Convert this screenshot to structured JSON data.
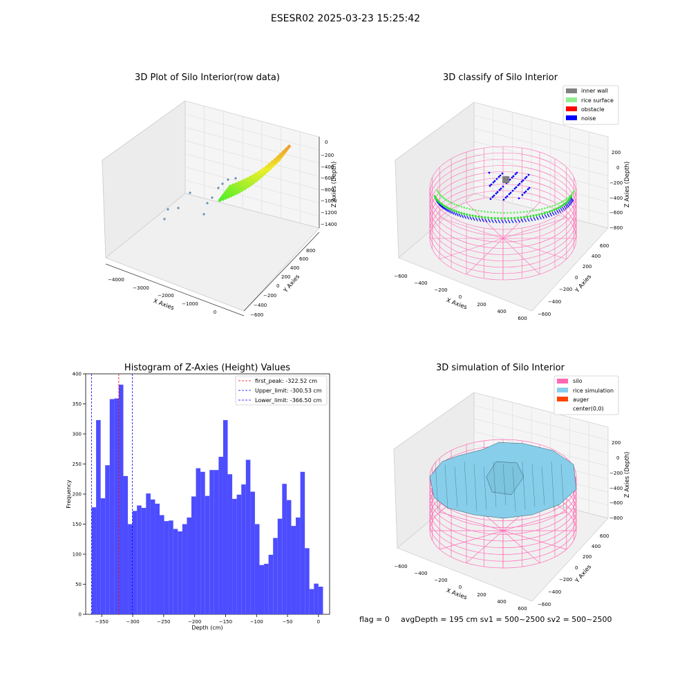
{
  "suptitle": "ESESR02 2025-03-23 15:25:42",
  "footer": {
    "flag": "flag = 0",
    "avg": "avgDepth = 195 cm  sv1 = 500~2500  sv2 = 500~2500"
  },
  "colors": {
    "inner_wall": "#808080",
    "rice_surface": "#90ee90",
    "obstacle": "#ff0000",
    "noise": "#0000ff",
    "silo": "#ff69b4",
    "rice_simulation": "#87ceeb",
    "auger": "#ff4500",
    "hist_bar": "#4d4dff",
    "first_peak_line": "#ff0000",
    "limit_line": "#0000ff"
  },
  "chart_data": [
    {
      "type": "scatter",
      "title": "3D Plot of Silo Interior(row data)",
      "xlabel": "X Axies",
      "ylabel": "Y Axies",
      "zlabel": "Z Axies (Depth)",
      "x_ticks": [
        "−4000",
        "−3000",
        "−2000",
        "−1000",
        "0"
      ],
      "y_ticks": [
        "−600",
        "−400",
        "−200",
        "0",
        "200",
        "400",
        "600",
        "800"
      ],
      "z_ticks": [
        "0",
        "−200",
        "−400",
        "−600",
        "−800",
        "−1000",
        "−1200",
        "−1400"
      ]
    },
    {
      "type": "scatter",
      "title": "3D classify of Silo Interior",
      "xlabel": "X Axies",
      "ylabel": "Y Axies",
      "zlabel": "Z Axies (Depth)",
      "x_ticks": [
        "−600",
        "−400",
        "−200",
        "0",
        "200",
        "400",
        "600"
      ],
      "y_ticks": [
        "−600",
        "−400",
        "−200",
        "0",
        "200",
        "400",
        "600"
      ],
      "z_ticks": [
        "200",
        "0",
        "−200",
        "−400",
        "−600",
        "−800"
      ],
      "legend": [
        "inner wall",
        "rice surface",
        "obstacle",
        "noise"
      ],
      "legend_loc": "top-right"
    },
    {
      "type": "bar",
      "title": "Histogram of Z-Axies (Height) Values",
      "xlabel": "Depth (cm)",
      "ylabel": "Frequency",
      "xlim": [
        -376,
        18
      ],
      "ylim": [
        0,
        400
      ],
      "x_ticks": [
        -350,
        -300,
        -250,
        -200,
        -150,
        -100,
        -50,
        0
      ],
      "x_tick_labels": [
        "−350",
        "−300",
        "−250",
        "−200",
        "−150",
        "−100",
        "−50",
        "0"
      ],
      "y_ticks": [
        0,
        50,
        100,
        150,
        200,
        250,
        300,
        350,
        400
      ],
      "bin_start": -366.5,
      "bin_width": 7.33,
      "values": [
        178,
        323,
        193,
        248,
        358,
        359,
        382,
        230,
        150,
        172,
        181,
        177,
        201,
        191,
        184,
        165,
        155,
        156,
        142,
        138,
        150,
        161,
        196,
        243,
        237,
        197,
        240,
        240,
        262,
        323,
        233,
        192,
        199,
        216,
        257,
        204,
        150,
        82,
        84,
        99,
        127,
        159,
        217,
        190,
        147,
        161,
        237,
        110,
        42,
        51,
        46
      ],
      "vlines": [
        {
          "x": -322.52,
          "label": "first_peak: -322.52 cm",
          "style": "red"
        },
        {
          "x": -300.53,
          "label": "Upper_limit: -300.53 cm",
          "style": "blue"
        },
        {
          "x": -366.5,
          "label": "Lower_limit: -366.50 cm",
          "style": "blue"
        }
      ],
      "legend_loc": "top-right"
    },
    {
      "type": "area",
      "title": "3D simulation of Silo Interior",
      "xlabel": "X Axies",
      "ylabel": "Y Axies",
      "zlabel": "Z Axies (Depth)",
      "x_ticks": [
        "−600",
        "−400",
        "−200",
        "0",
        "200",
        "400",
        "600"
      ],
      "y_ticks": [
        "−600",
        "−400",
        "−200",
        "0",
        "200",
        "400",
        "600"
      ],
      "z_ticks": [
        "200",
        "0",
        "−200",
        "−400",
        "−600",
        "−800"
      ],
      "legend": [
        "silo",
        "rice simulation",
        "auger",
        "center(0,0)"
      ],
      "legend_loc": "top-right"
    }
  ]
}
